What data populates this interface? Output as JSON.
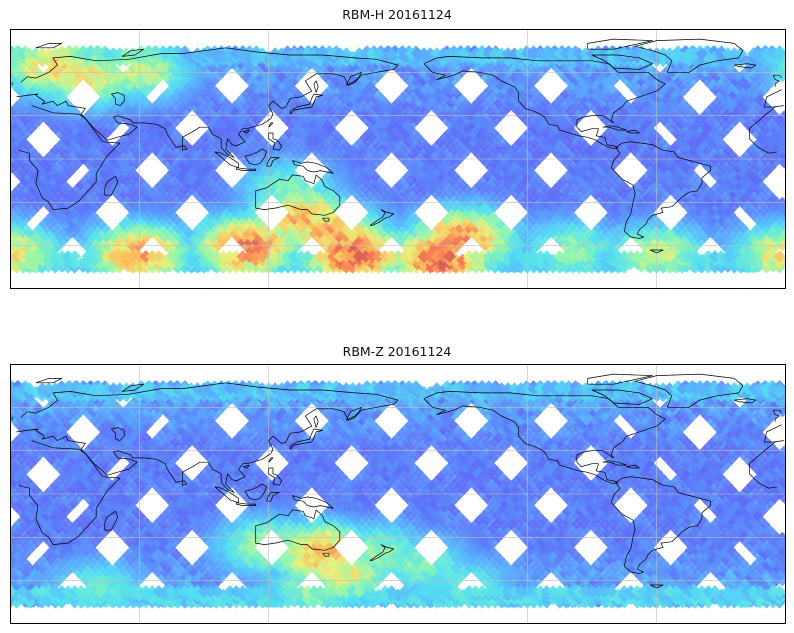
{
  "panels": [
    {
      "title": "RBM-H 20161124",
      "hot_zones": [
        {
          "lon": -150,
          "lat": -55,
          "level": 0.9
        },
        {
          "lon": -160,
          "lat": -68,
          "level": 1.0
        },
        {
          "lon": 150,
          "lat": -52,
          "level": 0.85
        },
        {
          "lon": 110,
          "lat": -60,
          "level": 0.95
        },
        {
          "lon": 135,
          "lat": -40,
          "level": 0.8
        },
        {
          "lon": 160,
          "lat": -65,
          "level": 1.0
        },
        {
          "lon": 60,
          "lat": -65,
          "level": 0.85
        },
        {
          "lon": 0,
          "lat": -65,
          "level": 0.7
        },
        {
          "lon": -60,
          "lat": -65,
          "level": 0.6
        },
        {
          "lon": 20,
          "lat": 65,
          "level": 0.75
        },
        {
          "lon": 35,
          "lat": 58,
          "level": 0.7
        },
        {
          "lon": 60,
          "lat": 62,
          "level": 0.6
        },
        {
          "lon": 130,
          "lat": -20,
          "level": 0.45
        },
        {
          "lon": -100,
          "lat": -62,
          "level": 0.5
        }
      ]
    },
    {
      "title": "RBM-Z 20161124",
      "hot_zones": [
        {
          "lon": 145,
          "lat": -40,
          "level": 0.8
        },
        {
          "lon": 155,
          "lat": -55,
          "level": 0.65
        },
        {
          "lon": 120,
          "lat": -35,
          "level": 0.55
        },
        {
          "lon": 170,
          "lat": -40,
          "level": 0.5
        },
        {
          "lon": -170,
          "lat": -48,
          "level": 0.45
        },
        {
          "lon": 140,
          "lat": -65,
          "level": 0.5
        },
        {
          "lon": 40,
          "lat": -65,
          "level": 0.4
        },
        {
          "lon": -150,
          "lat": -62,
          "level": 0.4
        }
      ]
    }
  ],
  "map": {
    "projection": "PlateCarree",
    "central_longitude": -180,
    "lat_range": [
      -90,
      90
    ],
    "data_lat_range": [
      -75,
      75
    ],
    "gridlines_lon": [
      -120,
      -60,
      0,
      60,
      120
    ],
    "gridlines_lat": [
      -60,
      -30,
      0,
      30,
      60
    ],
    "ocean_color": "#ffffff",
    "coast_color": "#000000",
    "gridline_color": "#bfbfbf"
  },
  "colormap": [
    "#5f5ff5",
    "#5aa8ff",
    "#55e0f0",
    "#8ff5b0",
    "#e8f07a",
    "#ffb45a",
    "#f26a55",
    "#c25a5a"
  ]
}
